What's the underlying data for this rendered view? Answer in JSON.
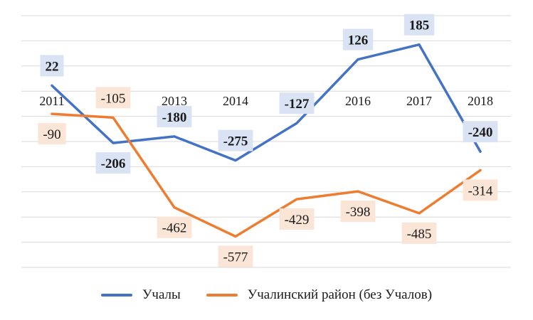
{
  "chart_data": {
    "type": "line",
    "categories": [
      "2011",
      "2012",
      "2013",
      "2014",
      "2015",
      "2016",
      "2017",
      "2018"
    ],
    "series": [
      {
        "name": "Учалы",
        "color": "#4472c4",
        "values": [
          22,
          -206,
          -180,
          -275,
          -127,
          126,
          185,
          -240
        ],
        "labels": [
          "22",
          "-206",
          "-180",
          "-275",
          "-127",
          "126",
          "185",
          "-240"
        ],
        "label_fill": "#dae3f3",
        "label_bold": true
      },
      {
        "name": "Учалинский район (без Учалов)",
        "color": "#ed7d31",
        "values": [
          -90,
          -105,
          -462,
          -577,
          -429,
          -398,
          -485,
          -314
        ],
        "labels": [
          "-90",
          "-105",
          "-462",
          "-577",
          "-429",
          "-398",
          "-485",
          "-314"
        ],
        "label_fill": "#fbe5d6",
        "label_bold": false
      }
    ],
    "ylim": [
      -700,
      300
    ],
    "grid": true,
    "legend": "bottom"
  }
}
